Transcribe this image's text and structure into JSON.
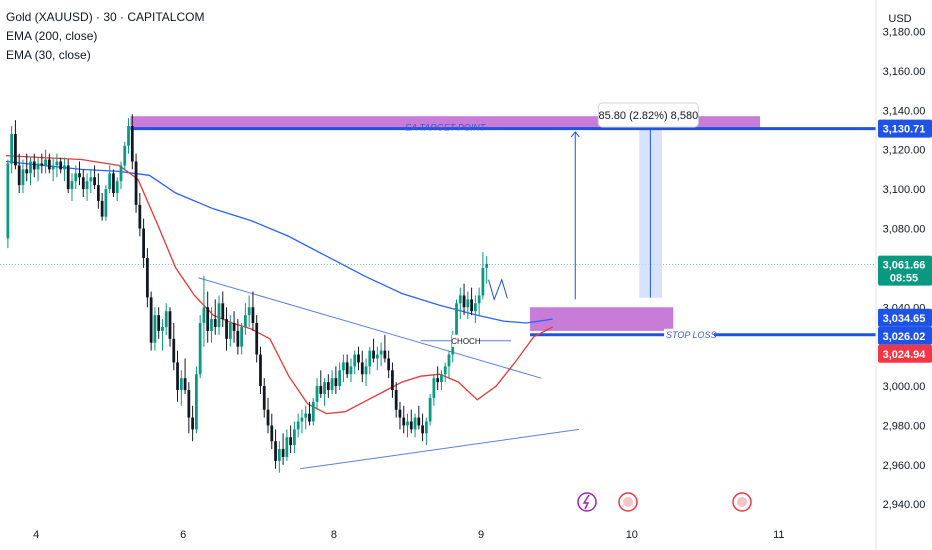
{
  "legend": {
    "symbol": "Gold (XAUUSD) · 30 · CAPITALCOM",
    "ema200": "EMA (200, close)",
    "ema30": "EMA (30, close)"
  },
  "currency_label": "USD",
  "colors": {
    "up": "#089981",
    "down": "#131722",
    "ema200": "#2962ff",
    "ema30": "#e53935",
    "zone": "#c77dd7",
    "level": "#1e53e5",
    "last_price": "#089981",
    "stop_tag": "#f23645"
  },
  "chart_data": {
    "type": "candlestick",
    "ylim": [
      2932,
      3196
    ],
    "y_ticks": [
      3180,
      3160,
      3140,
      3120,
      3100,
      3080,
      3040,
      3000,
      2980,
      2960,
      2940
    ],
    "y_tick_labels": [
      "3,180.00",
      "3,160.00",
      "3,140.00",
      "3,120.00",
      "3,100.00",
      "3,080.00",
      "3,040.00",
      "3,000.00",
      "2,980.00",
      "2,960.00",
      "2,940.00"
    ],
    "x_ticks": [
      {
        "label": "4",
        "bar": 8
      },
      {
        "label": "6",
        "bar": 47
      },
      {
        "label": "8",
        "bar": 87
      },
      {
        "label": "9",
        "bar": 126
      },
      {
        "label": "10",
        "bar": 166
      },
      {
        "label": "11",
        "bar": 205
      }
    ],
    "bar_count": 218,
    "price_tags": [
      {
        "label": "3,130.71",
        "value": 3130.71,
        "type": "level"
      },
      {
        "label": "3,061.66",
        "sub": "08:55",
        "value": 3061.66,
        "type": "last_price"
      },
      {
        "label": "3,034.65",
        "value": 3034.65,
        "type": "level"
      },
      {
        "label": "3,026.02",
        "value": 3026.02,
        "type": "level"
      },
      {
        "label": "3,024.94",
        "value": 3024.94,
        "type": "stop_tag"
      }
    ],
    "annotations": {
      "target_label": "EA TARGET POINT",
      "stop_label": "STOP LOSS",
      "choch_label": "CHOCH",
      "measure_label": "85.80 (2.82%) 8,580"
    },
    "target_zone": {
      "bar_start": 33,
      "bar_end": 200,
      "price_top": 3137,
      "price_bottom": 3130.7
    },
    "target_line": {
      "bar_start": 33,
      "bar_end": 218,
      "price": 3130.71
    },
    "entry_zone": {
      "bar_start": 139,
      "bar_end": 177,
      "price_top": 3040,
      "price_bottom": 3028
    },
    "stop_line": {
      "bar_start": 139,
      "bar_end": 218,
      "price": 3026.02
    },
    "measure_box": {
      "bar_start": 168,
      "bar_end": 174,
      "price_top": 3130.71,
      "price_bottom": 3044.9
    },
    "arrow": {
      "bar": 151,
      "from_price": 3044,
      "to_price": 3129
    },
    "choch_line": {
      "bar_start": 110,
      "bar_end": 134,
      "price": 3023
    },
    "trendline_upper": {
      "from": [
        51,
        3055
      ],
      "to": [
        142,
        3004
      ]
    },
    "trendline_lower": {
      "from": [
        78,
        2958
      ],
      "to": [
        152,
        2978
      ]
    },
    "ema200_points": [
      [
        0,
        3114
      ],
      [
        10,
        3112
      ],
      [
        20,
        3110
      ],
      [
        30,
        3109
      ],
      [
        38,
        3107
      ],
      [
        45,
        3098
      ],
      [
        55,
        3090
      ],
      [
        65,
        3084
      ],
      [
        75,
        3076
      ],
      [
        85,
        3066
      ],
      [
        95,
        3056
      ],
      [
        105,
        3047
      ],
      [
        115,
        3041
      ],
      [
        125,
        3036
      ],
      [
        132,
        3033
      ],
      [
        138,
        3032
      ],
      [
        145,
        3034
      ]
    ],
    "ema30_points": [
      [
        0,
        3117
      ],
      [
        10,
        3116
      ],
      [
        20,
        3115
      ],
      [
        30,
        3112
      ],
      [
        35,
        3105
      ],
      [
        40,
        3083
      ],
      [
        45,
        3060
      ],
      [
        50,
        3046
      ],
      [
        55,
        3036
      ],
      [
        60,
        3032
      ],
      [
        65,
        3029
      ],
      [
        70,
        3024
      ],
      [
        75,
        3005
      ],
      [
        80,
        2991
      ],
      [
        85,
        2986
      ],
      [
        90,
        2987
      ],
      [
        95,
        2992
      ],
      [
        100,
        2997
      ],
      [
        105,
        3002
      ],
      [
        110,
        3005
      ],
      [
        115,
        3006
      ],
      [
        120,
        3002
      ],
      [
        125,
        2993
      ],
      [
        130,
        3000
      ],
      [
        135,
        3012
      ],
      [
        140,
        3025
      ],
      [
        145,
        3030
      ]
    ],
    "candles": [
      [
        0,
        3075,
        3115,
        3070,
        3113
      ],
      [
        1,
        3113,
        3132,
        3108,
        3128
      ],
      [
        2,
        3128,
        3135,
        3110,
        3112
      ],
      [
        3,
        3112,
        3118,
        3098,
        3102
      ],
      [
        4,
        3102,
        3115,
        3098,
        3110
      ],
      [
        5,
        3110,
        3118,
        3104,
        3108
      ],
      [
        6,
        3108,
        3116,
        3102,
        3114
      ],
      [
        7,
        3114,
        3118,
        3106,
        3110
      ],
      [
        8,
        3110,
        3116,
        3104,
        3113
      ],
      [
        9,
        3113,
        3118,
        3108,
        3112
      ],
      [
        10,
        3112,
        3120,
        3108,
        3115
      ],
      [
        11,
        3115,
        3118,
        3108,
        3110
      ],
      [
        12,
        3110,
        3116,
        3104,
        3112
      ],
      [
        13,
        3112,
        3118,
        3106,
        3114
      ],
      [
        14,
        3114,
        3116,
        3108,
        3110
      ],
      [
        15,
        3110,
        3116,
        3104,
        3112
      ],
      [
        16,
        3112,
        3115,
        3098,
        3100
      ],
      [
        17,
        3100,
        3108,
        3094,
        3104
      ],
      [
        18,
        3104,
        3112,
        3100,
        3108
      ],
      [
        19,
        3108,
        3114,
        3102,
        3106
      ],
      [
        20,
        3106,
        3110,
        3096,
        3100
      ],
      [
        21,
        3100,
        3108,
        3094,
        3104
      ],
      [
        22,
        3104,
        3110,
        3098,
        3106
      ],
      [
        23,
        3106,
        3112,
        3100,
        3102
      ],
      [
        24,
        3102,
        3108,
        3090,
        3094
      ],
      [
        25,
        3094,
        3098,
        3084,
        3086
      ],
      [
        26,
        3086,
        3102,
        3084,
        3100
      ],
      [
        27,
        3100,
        3112,
        3098,
        3108
      ],
      [
        28,
        3108,
        3110,
        3096,
        3098
      ],
      [
        29,
        3098,
        3106,
        3094,
        3104
      ],
      [
        30,
        3104,
        3114,
        3100,
        3112
      ],
      [
        31,
        3112,
        3124,
        3110,
        3122
      ],
      [
        32,
        3122,
        3136,
        3118,
        3132
      ],
      [
        33,
        3132,
        3138,
        3110,
        3114
      ],
      [
        34,
        3114,
        3118,
        3088,
        3092
      ],
      [
        35,
        3092,
        3098,
        3076,
        3080
      ],
      [
        36,
        3080,
        3085,
        3060,
        3065
      ],
      [
        37,
        3065,
        3070,
        3040,
        3045
      ],
      [
        38,
        3045,
        3048,
        3018,
        3022
      ],
      [
        39,
        3022,
        3040,
        3018,
        3036
      ],
      [
        40,
        3036,
        3040,
        3024,
        3028
      ],
      [
        41,
        3028,
        3034,
        3018,
        3030
      ],
      [
        42,
        3030,
        3042,
        3026,
        3038
      ],
      [
        43,
        3038,
        3040,
        3020,
        3024
      ],
      [
        44,
        3024,
        3032,
        3008,
        3012
      ],
      [
        45,
        3012,
        3018,
        2992,
        2998
      ],
      [
        46,
        2998,
        3008,
        2990,
        3004
      ],
      [
        47,
        3004,
        3014,
        2996,
        2998
      ],
      [
        48,
        2998,
        3002,
        2976,
        2984
      ],
      [
        49,
        2984,
        2990,
        2972,
        2978
      ],
      [
        50,
        2978,
        3010,
        2976,
        3006
      ],
      [
        51,
        3006,
        3036,
        3004,
        3032
      ],
      [
        52,
        3032,
        3056,
        3020,
        3040
      ],
      [
        53,
        3040,
        3048,
        3022,
        3028
      ],
      [
        54,
        3028,
        3040,
        3022,
        3034
      ],
      [
        55,
        3034,
        3044,
        3026,
        3030
      ],
      [
        56,
        3030,
        3046,
        3026,
        3042
      ],
      [
        57,
        3042,
        3048,
        3030,
        3034
      ],
      [
        58,
        3034,
        3040,
        3018,
        3024
      ],
      [
        59,
        3024,
        3036,
        3020,
        3032
      ],
      [
        60,
        3032,
        3038,
        3022,
        3028
      ],
      [
        61,
        3028,
        3034,
        3016,
        3020
      ],
      [
        62,
        3020,
        3032,
        3016,
        3030
      ],
      [
        63,
        3030,
        3042,
        3026,
        3036
      ],
      [
        64,
        3036,
        3046,
        3030,
        3040
      ],
      [
        65,
        3040,
        3048,
        3028,
        3032
      ],
      [
        66,
        3032,
        3036,
        3012,
        3016
      ],
      [
        67,
        3016,
        3020,
        2996,
        3000
      ],
      [
        68,
        3000,
        3004,
        2984,
        2988
      ],
      [
        69,
        2988,
        2994,
        2976,
        2980
      ],
      [
        70,
        2980,
        2986,
        2968,
        2972
      ],
      [
        71,
        2972,
        2978,
        2958,
        2962
      ],
      [
        72,
        2962,
        2972,
        2956,
        2968
      ],
      [
        73,
        2968,
        2976,
        2960,
        2964
      ],
      [
        74,
        2964,
        2978,
        2962,
        2974
      ],
      [
        75,
        2974,
        2980,
        2966,
        2970
      ],
      [
        76,
        2970,
        2982,
        2966,
        2978
      ],
      [
        77,
        2978,
        2986,
        2974,
        2982
      ],
      [
        78,
        2982,
        2988,
        2976,
        2984
      ],
      [
        79,
        2984,
        2990,
        2978,
        2986
      ],
      [
        80,
        2986,
        2992,
        2980,
        2982
      ],
      [
        81,
        2982,
        2994,
        2980,
        2992
      ],
      [
        82,
        2992,
        3004,
        2988,
        3000
      ],
      [
        83,
        3000,
        3008,
        2994,
        2996
      ],
      [
        84,
        2996,
        3004,
        2990,
        3002
      ],
      [
        85,
        3002,
        3006,
        2994,
        2998
      ],
      [
        86,
        2998,
        3008,
        2996,
        3004
      ],
      [
        87,
        3004,
        3010,
        2996,
        3000
      ],
      [
        88,
        3000,
        3012,
        2998,
        3008
      ],
      [
        89,
        3008,
        3016,
        3002,
        3012
      ],
      [
        90,
        3012,
        3016,
        3004,
        3006
      ],
      [
        91,
        3006,
        3014,
        3002,
        3010
      ],
      [
        92,
        3010,
        3018,
        3006,
        3016
      ],
      [
        93,
        3016,
        3020,
        3008,
        3012
      ],
      [
        94,
        3012,
        3018,
        3002,
        3006
      ],
      [
        95,
        3006,
        3014,
        3000,
        3010
      ],
      [
        96,
        3010,
        3020,
        3006,
        3018
      ],
      [
        97,
        3018,
        3024,
        3012,
        3014
      ],
      [
        98,
        3014,
        3020,
        3008,
        3016
      ],
      [
        99,
        3016,
        3022,
        3010,
        3018
      ],
      [
        100,
        3018,
        3026,
        3012,
        3014
      ],
      [
        101,
        3014,
        3018,
        3004,
        3008
      ],
      [
        102,
        3008,
        3012,
        2994,
        2998
      ],
      [
        103,
        2998,
        3002,
        2984,
        2988
      ],
      [
        104,
        2988,
        2992,
        2978,
        2984
      ],
      [
        105,
        2984,
        2990,
        2976,
        2980
      ],
      [
        106,
        2980,
        2986,
        2974,
        2982
      ],
      [
        107,
        2982,
        2988,
        2976,
        2978
      ],
      [
        108,
        2978,
        2986,
        2974,
        2984
      ],
      [
        109,
        2984,
        2990,
        2978,
        2980
      ],
      [
        110,
        2980,
        2986,
        2972,
        2976
      ],
      [
        111,
        2976,
        2984,
        2970,
        2982
      ],
      [
        112,
        2982,
        2996,
        2980,
        2994
      ],
      [
        113,
        2994,
        3006,
        2990,
        3004
      ],
      [
        114,
        3004,
        3010,
        2998,
        3002
      ],
      [
        115,
        3002,
        3008,
        2998,
        3006
      ],
      [
        116,
        3006,
        3012,
        3002,
        3010
      ],
      [
        117,
        3010,
        3018,
        3004,
        3016
      ],
      [
        118,
        3016,
        3028,
        3012,
        3026
      ],
      [
        119,
        3026,
        3044,
        3022,
        3042
      ],
      [
        120,
        3042,
        3050,
        3034,
        3046
      ],
      [
        121,
        3046,
        3052,
        3036,
        3040
      ],
      [
        122,
        3040,
        3048,
        3034,
        3044
      ],
      [
        123,
        3044,
        3050,
        3036,
        3038
      ],
      [
        124,
        3038,
        3046,
        3032,
        3042
      ],
      [
        125,
        3042,
        3050,
        3036,
        3046
      ],
      [
        126,
        3046,
        3068,
        3044,
        3060
      ],
      [
        127,
        3060,
        3066,
        3052,
        3062
      ]
    ]
  }
}
